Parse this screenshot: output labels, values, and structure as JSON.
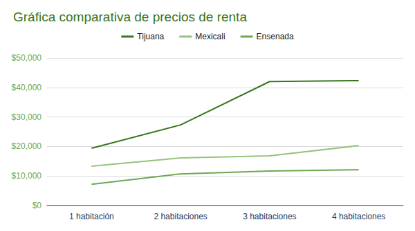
{
  "chart_data": {
    "type": "line",
    "title": "Gráfica comparativa de precios de renta",
    "categories": [
      "1 habitación",
      "2 habitaciones",
      "3 habitaciones",
      "4 habitaciones"
    ],
    "series": [
      {
        "name": "Tijuana",
        "color": "#38761d",
        "values": [
          19400,
          27300,
          42000,
          42300
        ]
      },
      {
        "name": "Mexicali",
        "color": "#93c47d",
        "values": [
          13300,
          16100,
          16800,
          20300
        ]
      },
      {
        "name": "Ensenada",
        "color": "#6aa84f",
        "values": [
          7200,
          10700,
          11700,
          12100
        ]
      }
    ],
    "ylim": [
      0,
      50000
    ],
    "yticks": [
      {
        "value": 0,
        "label": "$0"
      },
      {
        "value": 10000,
        "label": "$10,000"
      },
      {
        "value": 20000,
        "label": "$20,000"
      },
      {
        "value": 30000,
        "label": "$30,000"
      },
      {
        "value": 40000,
        "label": "$40,000"
      },
      {
        "value": 50000,
        "label": "$50,000"
      }
    ],
    "grid": true,
    "legend": "top"
  }
}
